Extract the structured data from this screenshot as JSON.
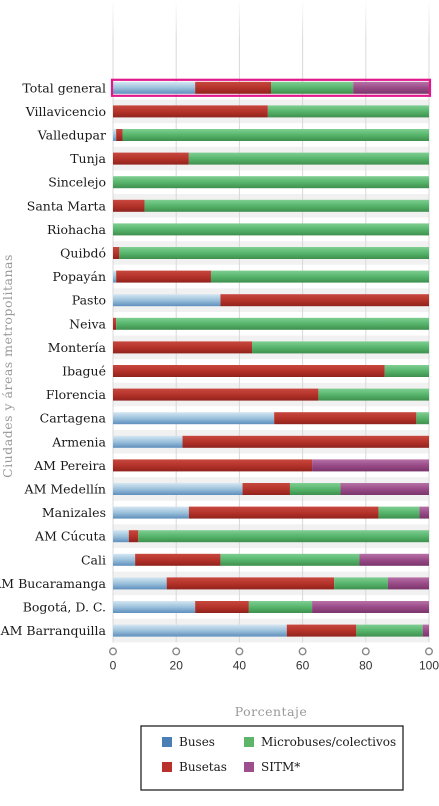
{
  "chart_data": {
    "type": "bar",
    "orientation": "horizontal",
    "stacked": true,
    "percent": true,
    "xlabel": "Porcentaje",
    "ylabel": "Ciudades y áreas metropolitanas",
    "xlim": [
      0,
      100
    ],
    "xticks": [
      0,
      20,
      40,
      60,
      80,
      100
    ],
    "grid": true,
    "legend_position": "bottom",
    "categories": [
      "Total general",
      "Villavicencio",
      "Valledupar",
      "Tunja",
      "Sincelejo",
      "Santa Marta",
      "Riohacha",
      "Quibdó",
      "Popayán",
      "Pasto",
      "Neiva",
      "Montería",
      "Ibagué",
      "Florencia",
      "Cartagena",
      "Armenia",
      "AM Pereira",
      "AM Medellín",
      "Manizales",
      "AM Cúcuta",
      "Cali",
      "AM Bucaramanga",
      "Bogotá, D. C.",
      "AM Barranquilla"
    ],
    "highlighted_category": "Total general",
    "series": [
      {
        "name": "Buses",
        "color": "#4a7fb5",
        "values": [
          26,
          0,
          1,
          0,
          0,
          0,
          0,
          0,
          1,
          34,
          0,
          0,
          0,
          0,
          51,
          22,
          0,
          41,
          24,
          5,
          7,
          17,
          26,
          55
        ]
      },
      {
        "name": "Busetas",
        "color": "#b8312a",
        "values": [
          24,
          49,
          2,
          24,
          0,
          10,
          0,
          2,
          30,
          66,
          1,
          44,
          86,
          65,
          45,
          78,
          63,
          15,
          60,
          3,
          27,
          53,
          17,
          22
        ]
      },
      {
        "name": "Microbuses/colectivos",
        "color": "#5db56a",
        "values": [
          26,
          51,
          97,
          76,
          100,
          90,
          100,
          98,
          69,
          0,
          99,
          56,
          14,
          35,
          4,
          0,
          0,
          16,
          13,
          92,
          44,
          17,
          20,
          21
        ]
      },
      {
        "name": "SITM*",
        "color": "#9c4f8c",
        "values": [
          24,
          0,
          0,
          0,
          0,
          0,
          0,
          0,
          0,
          0,
          0,
          0,
          0,
          0,
          0,
          0,
          37,
          28,
          3,
          0,
          22,
          13,
          37,
          2
        ]
      }
    ]
  }
}
